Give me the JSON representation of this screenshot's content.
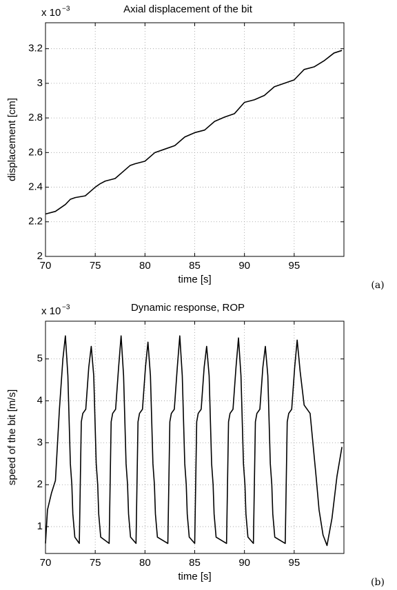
{
  "chart_data": [
    {
      "type": "line",
      "title": "Axial displacement of the bit",
      "x_label": "time [s]",
      "y_label": "displacement [cm]",
      "axis_multiplier": "x 10",
      "axis_multiplier_exponent": "−3",
      "panel_label": "(a)",
      "xlim": [
        70,
        100
      ],
      "xticks": [
        70,
        75,
        80,
        85,
        90,
        95
      ],
      "ylim": [
        2,
        3.35
      ],
      "yticks": [
        2,
        2.2,
        2.4,
        2.6,
        2.8,
        3,
        3.2
      ],
      "grid": true,
      "series": [
        {
          "color": "#000000",
          "x": [
            70,
            71,
            72,
            72.5,
            73,
            74,
            75,
            75.5,
            76,
            77,
            78,
            78.5,
            79,
            80,
            81,
            82,
            83,
            84,
            85,
            86,
            87,
            88,
            89,
            90,
            91,
            92,
            93,
            94,
            95,
            96,
            97,
            98,
            99,
            99.8
          ],
          "values": [
            2.245,
            2.26,
            2.3,
            2.33,
            2.34,
            2.35,
            2.4,
            2.42,
            2.435,
            2.45,
            2.5,
            2.525,
            2.535,
            2.55,
            2.6,
            2.62,
            2.64,
            2.69,
            2.715,
            2.73,
            2.78,
            2.805,
            2.825,
            2.89,
            2.905,
            2.93,
            2.98,
            3.0,
            3.02,
            3.08,
            3.095,
            3.13,
            3.175,
            3.19
          ]
        }
      ]
    },
    {
      "type": "line",
      "title": "Dynamic response, ROP",
      "x_label": "time [s]",
      "y_label": "speed of the bit [m/s]",
      "axis_multiplier": "x 10",
      "axis_multiplier_exponent": "−3",
      "panel_label": "(b)",
      "xlim": [
        70,
        100
      ],
      "xticks": [
        70,
        75,
        80,
        85,
        90,
        95
      ],
      "ylim": [
        0.36,
        5.9
      ],
      "yticks": [
        1,
        2,
        3,
        4,
        5
      ],
      "grid": true,
      "series": [
        {
          "color": "#000000",
          "x": [
            70.0,
            70.2,
            70.6,
            71.0,
            71.4,
            71.75,
            72.0,
            72.25,
            72.5,
            72.65,
            72.75,
            72.95,
            73.4,
            73.6,
            73.75,
            74.05,
            74.35,
            74.6,
            74.85,
            75.1,
            75.25,
            75.35,
            75.55,
            76.4,
            76.6,
            76.75,
            77.05,
            77.35,
            77.6,
            77.85,
            78.1,
            78.25,
            78.35,
            78.55,
            79.1,
            79.3,
            79.45,
            79.75,
            80.05,
            80.3,
            80.55,
            80.8,
            80.95,
            81.05,
            81.25,
            82.3,
            82.5,
            82.65,
            82.95,
            83.25,
            83.5,
            83.75,
            84.0,
            84.15,
            84.25,
            84.45,
            85.0,
            85.2,
            85.35,
            85.65,
            85.95,
            86.2,
            86.45,
            86.7,
            86.85,
            86.95,
            87.15,
            88.2,
            88.4,
            88.55,
            88.85,
            89.15,
            89.4,
            89.65,
            89.9,
            90.05,
            90.15,
            90.35,
            90.9,
            91.1,
            91.25,
            91.55,
            91.85,
            92.1,
            92.35,
            92.6,
            92.75,
            92.85,
            93.05,
            94.1,
            94.3,
            94.45,
            94.75,
            95.05,
            95.3,
            95.6,
            96.0,
            96.6,
            97.2,
            97.5,
            97.9,
            98.3,
            98.8,
            99.3,
            99.8
          ],
          "values": [
            0.6,
            1.4,
            1.8,
            2.1,
            3.8,
            5.0,
            5.55,
            4.6,
            2.5,
            2.0,
            1.3,
            0.75,
            0.6,
            3.5,
            3.7,
            3.8,
            4.8,
            5.3,
            4.6,
            2.5,
            2.0,
            1.3,
            0.75,
            0.6,
            3.5,
            3.7,
            3.8,
            4.8,
            5.55,
            4.6,
            2.5,
            2.0,
            1.3,
            0.75,
            0.6,
            3.5,
            3.7,
            3.8,
            4.8,
            5.4,
            4.6,
            2.5,
            2.0,
            1.3,
            0.75,
            0.6,
            3.5,
            3.7,
            3.8,
            4.8,
            5.55,
            4.6,
            2.5,
            2.0,
            1.3,
            0.75,
            0.6,
            3.5,
            3.7,
            3.8,
            4.8,
            5.3,
            4.6,
            2.5,
            2.0,
            1.3,
            0.75,
            0.6,
            3.5,
            3.7,
            3.8,
            4.8,
            5.5,
            4.6,
            2.5,
            2.0,
            1.3,
            0.75,
            0.6,
            3.5,
            3.7,
            3.8,
            4.8,
            5.3,
            4.6,
            2.5,
            2.0,
            1.3,
            0.75,
            0.6,
            3.5,
            3.7,
            3.8,
            4.8,
            5.45,
            4.7,
            3.9,
            3.7,
            2.2,
            1.4,
            0.8,
            0.55,
            1.2,
            2.2,
            2.9
          ]
        }
      ]
    }
  ]
}
